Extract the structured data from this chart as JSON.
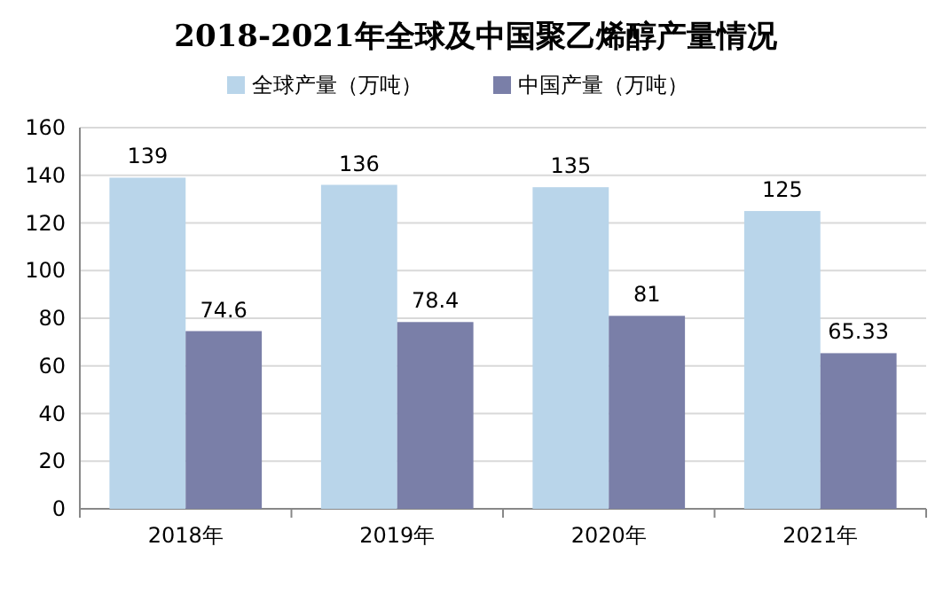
{
  "chart_data": {
    "type": "bar",
    "title": "2018-2021年全球及中国聚乙烯醇产量情况",
    "categories": [
      "2018年",
      "2019年",
      "2020年",
      "2021年"
    ],
    "series": [
      {
        "name": "全球产量（万吨）",
        "color": "#b9d5ea",
        "values": [
          139,
          136,
          135,
          125
        ]
      },
      {
        "name": "中国产量（万吨）",
        "color": "#7a7fa8",
        "values": [
          74.6,
          78.4,
          81,
          65.33
        ]
      }
    ],
    "ylim": [
      0,
      160
    ],
    "yticks": [
      0,
      20,
      40,
      60,
      80,
      100,
      120,
      140,
      160
    ],
    "grid": "y",
    "legend": "top",
    "data_labels": true
  }
}
